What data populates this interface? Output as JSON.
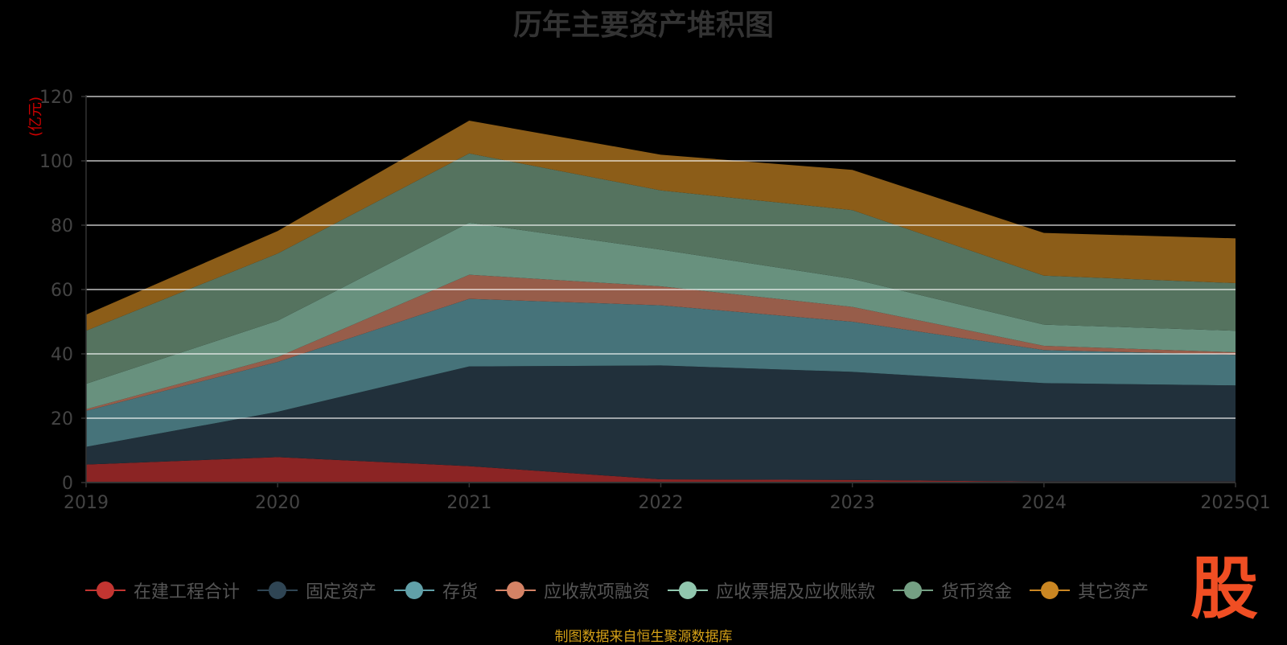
{
  "title": "历年主要资产堆积图",
  "unit_label": "(亿元)",
  "source_note": "制图数据来自恒生聚源数据库",
  "watermark": "股",
  "chart_data": {
    "type": "area",
    "stacked": true,
    "categories": [
      "2019",
      "2020",
      "2021",
      "2022",
      "2023",
      "2024",
      "2025Q1"
    ],
    "ylim": [
      0,
      120
    ],
    "yticks": [
      0,
      20,
      40,
      60,
      80,
      100,
      120
    ],
    "grid": true,
    "legend_position": "bottom",
    "series": [
      {
        "name": "在建工程合计",
        "color": "#c23531",
        "fill": "#8b2424",
        "values": [
          5.6,
          7.9,
          5.1,
          1.0,
          0.8,
          0.3,
          0.3
        ]
      },
      {
        "name": "固定资产",
        "color": "#2f4554",
        "fill": "#21303b",
        "values": [
          5.5,
          14.1,
          31.0,
          35.4,
          33.6,
          30.6,
          29.9
        ]
      },
      {
        "name": "存货",
        "color": "#61a0a8",
        "fill": "#46737a",
        "values": [
          11.2,
          15.5,
          21.0,
          18.7,
          15.6,
          10.3,
          9.5
        ]
      },
      {
        "name": "应收款项融资",
        "color": "#d48265",
        "fill": "#975d4a",
        "values": [
          0.5,
          1.5,
          7.5,
          5.9,
          4.6,
          1.3,
          0.8
        ]
      },
      {
        "name": "应收票据及应收账款",
        "color": "#91c7ae",
        "fill": "#68917e",
        "values": [
          7.9,
          11.3,
          16.2,
          11.4,
          8.7,
          6.6,
          6.7
        ]
      },
      {
        "name": "货币资金",
        "color": "#749f83",
        "fill": "#55735f",
        "values": [
          16.5,
          20.9,
          21.5,
          18.4,
          21.4,
          15.2,
          14.8
        ]
      },
      {
        "name": "其它资产",
        "color": "#ca8622",
        "fill": "#8c5d18",
        "values": [
          5.0,
          7.0,
          10.2,
          11.1,
          12.5,
          13.3,
          13.9
        ]
      }
    ]
  }
}
